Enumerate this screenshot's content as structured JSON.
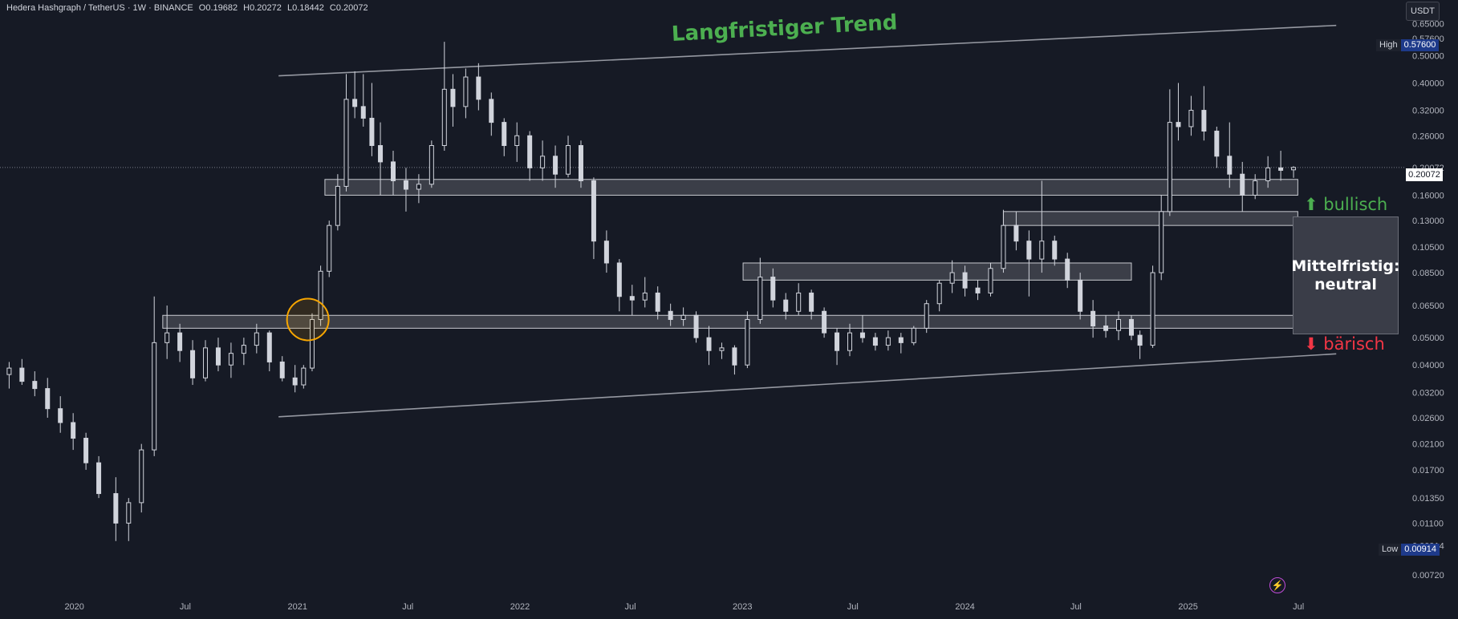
{
  "header": {
    "symbol": "Hedera Hashgraph / TetherUS · 1W · BINANCE",
    "open": "O0.19682",
    "high": "H0.20272",
    "low": "L0.18442",
    "close": "C0.20072"
  },
  "currency_label": "USDT",
  "high_badge": {
    "label": "High",
    "value": "0.57600"
  },
  "low_badge": {
    "label": "Low",
    "value": "0.00914"
  },
  "last_price": "0.20072",
  "annotations": {
    "trend_title": "Langfristiger Trend",
    "mid_label_line1": "Mittelfristig:",
    "mid_label_line2": "neutral",
    "bull_label": "bullisch",
    "bear_label": "bärisch",
    "bull_arrow": "⬆",
    "bear_arrow": "⬇",
    "bolt_icon": "⚡"
  },
  "colors": {
    "background": "#161a25",
    "candle": "#d1d4dc",
    "zone_fill": "rgba(255,255,255,0.16)",
    "trend_line": "#9598a1",
    "highlight_circle": "#f7a600",
    "bullish": "#4caf50",
    "bearish": "#f23645"
  },
  "chart_data": {
    "type": "candlestick",
    "scale": "log",
    "ylim": [
      0.006,
      0.7
    ],
    "y_ticks": [
      "0.65000",
      "0.57600",
      "0.50000",
      "0.40000",
      "0.32000",
      "0.26000",
      "0.20072",
      "0.16000",
      "0.13000",
      "0.10500",
      "0.08500",
      "0.06500",
      "0.05000",
      "0.04000",
      "0.03200",
      "0.02600",
      "0.02100",
      "0.01700",
      "0.01350",
      "0.01100",
      "0.00914",
      "0.00720"
    ],
    "x_ticks": [
      {
        "label": "2020",
        "date": "2020-01-01"
      },
      {
        "label": "Jul",
        "date": "2020-07-01"
      },
      {
        "label": "2021",
        "date": "2021-01-01"
      },
      {
        "label": "Jul",
        "date": "2021-07-01"
      },
      {
        "label": "2022",
        "date": "2022-01-01"
      },
      {
        "label": "Jul",
        "date": "2022-07-01"
      },
      {
        "label": "2023",
        "date": "2023-01-01"
      },
      {
        "label": "Jul",
        "date": "2023-07-01"
      },
      {
        "label": "2024",
        "date": "2024-01-01"
      },
      {
        "label": "Jul",
        "date": "2024-07-01"
      },
      {
        "label": "2025",
        "date": "2025-01-01"
      },
      {
        "label": "Jul",
        "date": "2025-07-01"
      }
    ],
    "x_range": [
      "2019-09-01",
      "2025-12-15"
    ],
    "series": [
      {
        "values": [
          [
            "2019-09-16",
            0.037,
            0.041,
            0.033,
            0.039
          ],
          [
            "2019-10-07",
            0.039,
            0.042,
            0.034,
            0.035
          ],
          [
            "2019-10-28",
            0.035,
            0.038,
            0.031,
            0.033
          ],
          [
            "2019-11-18",
            0.033,
            0.036,
            0.026,
            0.028
          ],
          [
            "2019-12-09",
            0.028,
            0.031,
            0.023,
            0.025
          ],
          [
            "2019-12-30",
            0.025,
            0.027,
            0.02,
            0.022
          ],
          [
            "2020-01-20",
            0.022,
            0.023,
            0.017,
            0.018
          ],
          [
            "2020-02-10",
            0.018,
            0.019,
            0.0135,
            0.014
          ],
          [
            "2020-03-09",
            0.014,
            0.016,
            0.0095,
            0.011
          ],
          [
            "2020-03-30",
            0.011,
            0.0135,
            0.0095,
            0.013
          ],
          [
            "2020-04-20",
            0.013,
            0.021,
            0.012,
            0.02
          ],
          [
            "2020-05-11",
            0.02,
            0.07,
            0.019,
            0.048
          ],
          [
            "2020-06-01",
            0.048,
            0.065,
            0.042,
            0.052
          ],
          [
            "2020-06-22",
            0.052,
            0.056,
            0.041,
            0.045
          ],
          [
            "2020-07-13",
            0.045,
            0.049,
            0.034,
            0.036
          ],
          [
            "2020-08-03",
            0.036,
            0.049,
            0.035,
            0.046
          ],
          [
            "2020-08-24",
            0.046,
            0.05,
            0.038,
            0.04
          ],
          [
            "2020-09-14",
            0.04,
            0.048,
            0.036,
            0.044
          ],
          [
            "2020-10-05",
            0.044,
            0.05,
            0.04,
            0.047
          ],
          [
            "2020-10-26",
            0.047,
            0.056,
            0.044,
            0.052
          ],
          [
            "2020-11-16",
            0.052,
            0.053,
            0.038,
            0.041
          ],
          [
            "2020-12-07",
            0.041,
            0.043,
            0.035,
            0.036
          ],
          [
            "2020-12-28",
            0.036,
            0.04,
            0.032,
            0.034
          ],
          [
            "2021-01-11",
            0.034,
            0.04,
            0.033,
            0.039
          ],
          [
            "2021-01-25",
            0.039,
            0.061,
            0.038,
            0.058
          ],
          [
            "2021-02-08",
            0.058,
            0.09,
            0.055,
            0.086
          ],
          [
            "2021-02-22",
            0.086,
            0.13,
            0.082,
            0.125
          ],
          [
            "2021-03-08",
            0.125,
            0.19,
            0.12,
            0.172
          ],
          [
            "2021-03-22",
            0.172,
            0.43,
            0.165,
            0.35
          ],
          [
            "2021-04-05",
            0.35,
            0.44,
            0.3,
            0.33
          ],
          [
            "2021-04-19",
            0.33,
            0.43,
            0.28,
            0.3
          ],
          [
            "2021-05-03",
            0.3,
            0.4,
            0.22,
            0.24
          ],
          [
            "2021-05-17",
            0.24,
            0.29,
            0.16,
            0.21
          ],
          [
            "2021-06-07",
            0.21,
            0.23,
            0.16,
            0.18
          ],
          [
            "2021-06-28",
            0.18,
            0.2,
            0.14,
            0.168
          ],
          [
            "2021-07-19",
            0.168,
            0.19,
            0.15,
            0.175
          ],
          [
            "2021-08-09",
            0.175,
            0.25,
            0.17,
            0.24
          ],
          [
            "2021-08-30",
            0.24,
            0.56,
            0.23,
            0.38
          ],
          [
            "2021-09-13",
            0.38,
            0.43,
            0.28,
            0.33
          ],
          [
            "2021-10-04",
            0.33,
            0.45,
            0.3,
            0.42
          ],
          [
            "2021-10-25",
            0.42,
            0.47,
            0.32,
            0.35
          ],
          [
            "2021-11-15",
            0.35,
            0.37,
            0.26,
            0.29
          ],
          [
            "2021-12-06",
            0.29,
            0.3,
            0.22,
            0.24
          ],
          [
            "2021-12-27",
            0.24,
            0.29,
            0.21,
            0.26
          ],
          [
            "2022-01-17",
            0.26,
            0.27,
            0.18,
            0.2
          ],
          [
            "2022-02-07",
            0.2,
            0.25,
            0.18,
            0.22
          ],
          [
            "2022-02-28",
            0.22,
            0.24,
            0.17,
            0.19
          ],
          [
            "2022-03-21",
            0.19,
            0.26,
            0.185,
            0.24
          ],
          [
            "2022-04-11",
            0.24,
            0.25,
            0.17,
            0.18
          ],
          [
            "2022-05-02",
            0.18,
            0.185,
            0.095,
            0.11
          ],
          [
            "2022-05-23",
            0.11,
            0.12,
            0.085,
            0.092
          ],
          [
            "2022-06-13",
            0.092,
            0.095,
            0.062,
            0.07
          ],
          [
            "2022-07-04",
            0.07,
            0.077,
            0.06,
            0.068
          ],
          [
            "2022-07-25",
            0.068,
            0.082,
            0.064,
            0.072
          ],
          [
            "2022-08-15",
            0.072,
            0.076,
            0.058,
            0.062
          ],
          [
            "2022-09-05",
            0.062,
            0.066,
            0.055,
            0.058
          ],
          [
            "2022-09-26",
            0.058,
            0.064,
            0.055,
            0.06
          ],
          [
            "2022-10-17",
            0.06,
            0.062,
            0.048,
            0.05
          ],
          [
            "2022-11-07",
            0.05,
            0.055,
            0.04,
            0.045
          ],
          [
            "2022-11-28",
            0.045,
            0.048,
            0.042,
            0.046
          ],
          [
            "2022-12-19",
            0.046,
            0.047,
            0.037,
            0.04
          ],
          [
            "2023-01-09",
            0.04,
            0.062,
            0.039,
            0.058
          ],
          [
            "2023-01-30",
            0.058,
            0.096,
            0.056,
            0.082
          ],
          [
            "2023-02-20",
            0.082,
            0.088,
            0.064,
            0.068
          ],
          [
            "2023-03-13",
            0.068,
            0.072,
            0.058,
            0.062
          ],
          [
            "2023-04-03",
            0.062,
            0.078,
            0.06,
            0.072
          ],
          [
            "2023-04-24",
            0.072,
            0.074,
            0.058,
            0.062
          ],
          [
            "2023-05-15",
            0.062,
            0.064,
            0.05,
            0.052
          ],
          [
            "2023-06-05",
            0.052,
            0.054,
            0.04,
            0.045
          ],
          [
            "2023-06-26",
            0.045,
            0.056,
            0.043,
            0.052
          ],
          [
            "2023-07-17",
            0.052,
            0.06,
            0.048,
            0.05
          ],
          [
            "2023-08-07",
            0.05,
            0.052,
            0.045,
            0.047
          ],
          [
            "2023-08-28",
            0.047,
            0.053,
            0.045,
            0.05
          ],
          [
            "2023-09-18",
            0.05,
            0.052,
            0.044,
            0.048
          ],
          [
            "2023-10-09",
            0.048,
            0.055,
            0.047,
            0.054
          ],
          [
            "2023-10-30",
            0.054,
            0.068,
            0.052,
            0.066
          ],
          [
            "2023-11-20",
            0.066,
            0.08,
            0.062,
            0.078
          ],
          [
            "2023-12-11",
            0.078,
            0.094,
            0.072,
            0.085
          ],
          [
            "2024-01-01",
            0.085,
            0.09,
            0.07,
            0.075
          ],
          [
            "2024-01-22",
            0.075,
            0.08,
            0.068,
            0.072
          ],
          [
            "2024-02-12",
            0.072,
            0.092,
            0.07,
            0.088
          ],
          [
            "2024-03-04",
            0.088,
            0.142,
            0.085,
            0.125
          ],
          [
            "2024-03-25",
            0.125,
            0.14,
            0.102,
            0.11
          ],
          [
            "2024-04-15",
            0.11,
            0.12,
            0.07,
            0.095
          ],
          [
            "2024-05-06",
            0.095,
            0.18,
            0.085,
            0.11
          ],
          [
            "2024-05-27",
            0.11,
            0.115,
            0.09,
            0.095
          ],
          [
            "2024-06-17",
            0.095,
            0.1,
            0.075,
            0.08
          ],
          [
            "2024-07-08",
            0.08,
            0.085,
            0.058,
            0.062
          ],
          [
            "2024-07-29",
            0.062,
            0.068,
            0.05,
            0.055
          ],
          [
            "2024-08-19",
            0.055,
            0.06,
            0.05,
            0.053
          ],
          [
            "2024-09-09",
            0.053,
            0.062,
            0.049,
            0.058
          ],
          [
            "2024-09-30",
            0.058,
            0.06,
            0.049,
            0.051
          ],
          [
            "2024-10-14",
            0.051,
            0.053,
            0.042,
            0.047
          ],
          [
            "2024-11-04",
            0.047,
            0.09,
            0.046,
            0.085
          ],
          [
            "2024-11-18",
            0.085,
            0.16,
            0.08,
            0.14
          ],
          [
            "2024-12-02",
            0.14,
            0.38,
            0.135,
            0.29
          ],
          [
            "2024-12-16",
            0.29,
            0.4,
            0.25,
            0.28
          ],
          [
            "2025-01-06",
            0.28,
            0.36,
            0.26,
            0.32
          ],
          [
            "2025-01-27",
            0.32,
            0.39,
            0.25,
            0.27
          ],
          [
            "2025-02-17",
            0.27,
            0.28,
            0.2,
            0.22
          ],
          [
            "2025-03-10",
            0.22,
            0.29,
            0.17,
            0.19
          ],
          [
            "2025-03-31",
            0.19,
            0.21,
            0.14,
            0.16
          ],
          [
            "2025-04-21",
            0.16,
            0.19,
            0.155,
            0.18
          ],
          [
            "2025-05-12",
            0.18,
            0.22,
            0.17,
            0.2
          ],
          [
            "2025-06-02",
            0.2,
            0.23,
            0.18,
            0.196
          ],
          [
            "2025-06-23",
            0.19682,
            0.20272,
            0.18442,
            0.20072
          ]
        ]
      }
    ],
    "zones": [
      {
        "start": "2021-02-15",
        "end": "2025-06-30",
        "top": 0.182,
        "bottom": 0.16
      },
      {
        "start": "2024-03-04",
        "end": "2025-06-30",
        "top": 0.14,
        "bottom": 0.125
      },
      {
        "start": "2023-01-02",
        "end": "2024-09-30",
        "top": 0.092,
        "bottom": 0.08
      },
      {
        "start": "2020-05-25",
        "end": "2025-06-30",
        "top": 0.06,
        "bottom": 0.054
      }
    ],
    "trend_lines": [
      {
        "start": [
          "2020-12-01",
          0.424
        ],
        "end": [
          "2025-09-01",
          0.64
        ]
      },
      {
        "start": [
          "2020-12-01",
          0.0262
        ],
        "end": [
          "2025-09-01",
          0.0438
        ]
      }
    ],
    "highlight": {
      "date": "2021-01-18",
      "price": 0.058
    }
  }
}
